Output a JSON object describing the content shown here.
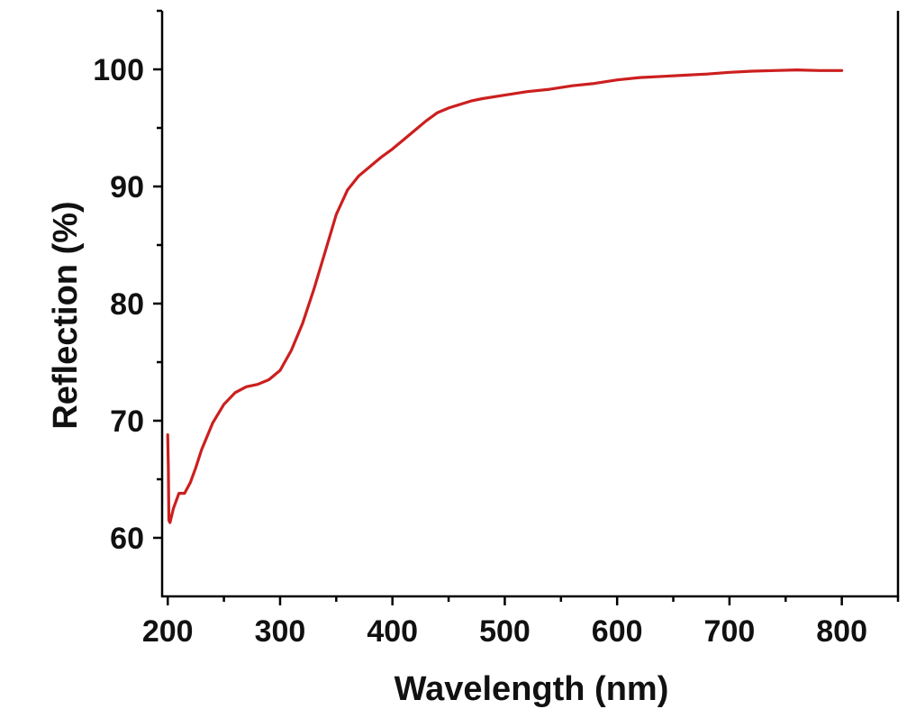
{
  "chart_data": {
    "type": "line",
    "xlabel": "Wavelength (nm)",
    "ylabel": "Reflection (%)",
    "xlim": [
      195,
      850
    ],
    "ylim": [
      55,
      105
    ],
    "xticks": [
      200,
      300,
      400,
      500,
      600,
      700,
      800
    ],
    "yticks": [
      60,
      70,
      80,
      90,
      100
    ],
    "grid": false,
    "legend": "none",
    "series": [
      {
        "color": "#cc1f1f",
        "x": [
          200,
          200.5,
          201,
          202,
          205,
          210,
          215,
          220,
          225,
          230,
          240,
          250,
          260,
          270,
          280,
          290,
          300,
          310,
          320,
          330,
          340,
          350,
          360,
          370,
          380,
          390,
          400,
          410,
          420,
          430,
          440,
          450,
          460,
          470,
          480,
          500,
          520,
          540,
          560,
          580,
          600,
          620,
          640,
          660,
          680,
          700,
          720,
          740,
          760,
          780,
          800
        ],
        "y": [
          68.8,
          66.0,
          61.5,
          61.3,
          62.5,
          63.8,
          63.8,
          64.7,
          66.0,
          67.5,
          69.8,
          71.4,
          72.4,
          72.9,
          73.1,
          73.5,
          74.3,
          76.0,
          78.3,
          81.2,
          84.4,
          87.6,
          89.7,
          90.9,
          91.7,
          92.5,
          93.2,
          94.0,
          94.8,
          95.6,
          96.3,
          96.7,
          97.0,
          97.3,
          97.5,
          97.8,
          98.1,
          98.3,
          98.6,
          98.8,
          99.1,
          99.3,
          99.4,
          99.5,
          99.6,
          99.75,
          99.85,
          99.9,
          99.95,
          99.9,
          99.9
        ]
      }
    ]
  }
}
